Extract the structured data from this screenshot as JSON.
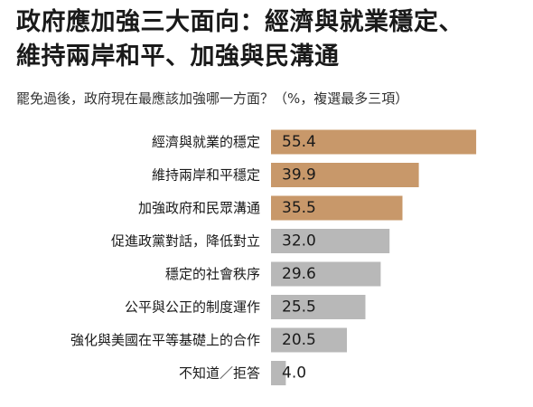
{
  "title_lines": [
    "政府應加強三大面向：經濟與就業穩定、",
    "維持兩岸和平、加強與民溝通"
  ],
  "subtitle": "罷免過後，政府現在最應該加強哪一方面？（%，複選最多三項）",
  "colors": {
    "highlight": "#c8986a",
    "other": "#b8b8b8",
    "text": "#1a1a1a"
  },
  "chart_data": {
    "type": "bar",
    "orientation": "horizontal",
    "categories": [
      "經濟與就業的穩定",
      "維持兩岸和平穩定",
      "加強政府和民眾溝通",
      "促進政黨對話，降低對立",
      "穩定的社會秩序",
      "公平與公正的制度運作",
      "強化與美國在平等基礎上的合作",
      "不知道／拒答"
    ],
    "values": [
      55.4,
      39.9,
      35.5,
      32.0,
      29.6,
      25.5,
      20.5,
      4.0
    ],
    "value_labels": [
      "55.4",
      "39.9",
      "35.5",
      "32.0",
      "29.6",
      "25.5",
      "20.5",
      "4.0"
    ],
    "highlighted": [
      true,
      true,
      true,
      false,
      false,
      false,
      false,
      false
    ],
    "xlim": [
      0,
      100
    ],
    "grid": false,
    "legend": "none"
  }
}
